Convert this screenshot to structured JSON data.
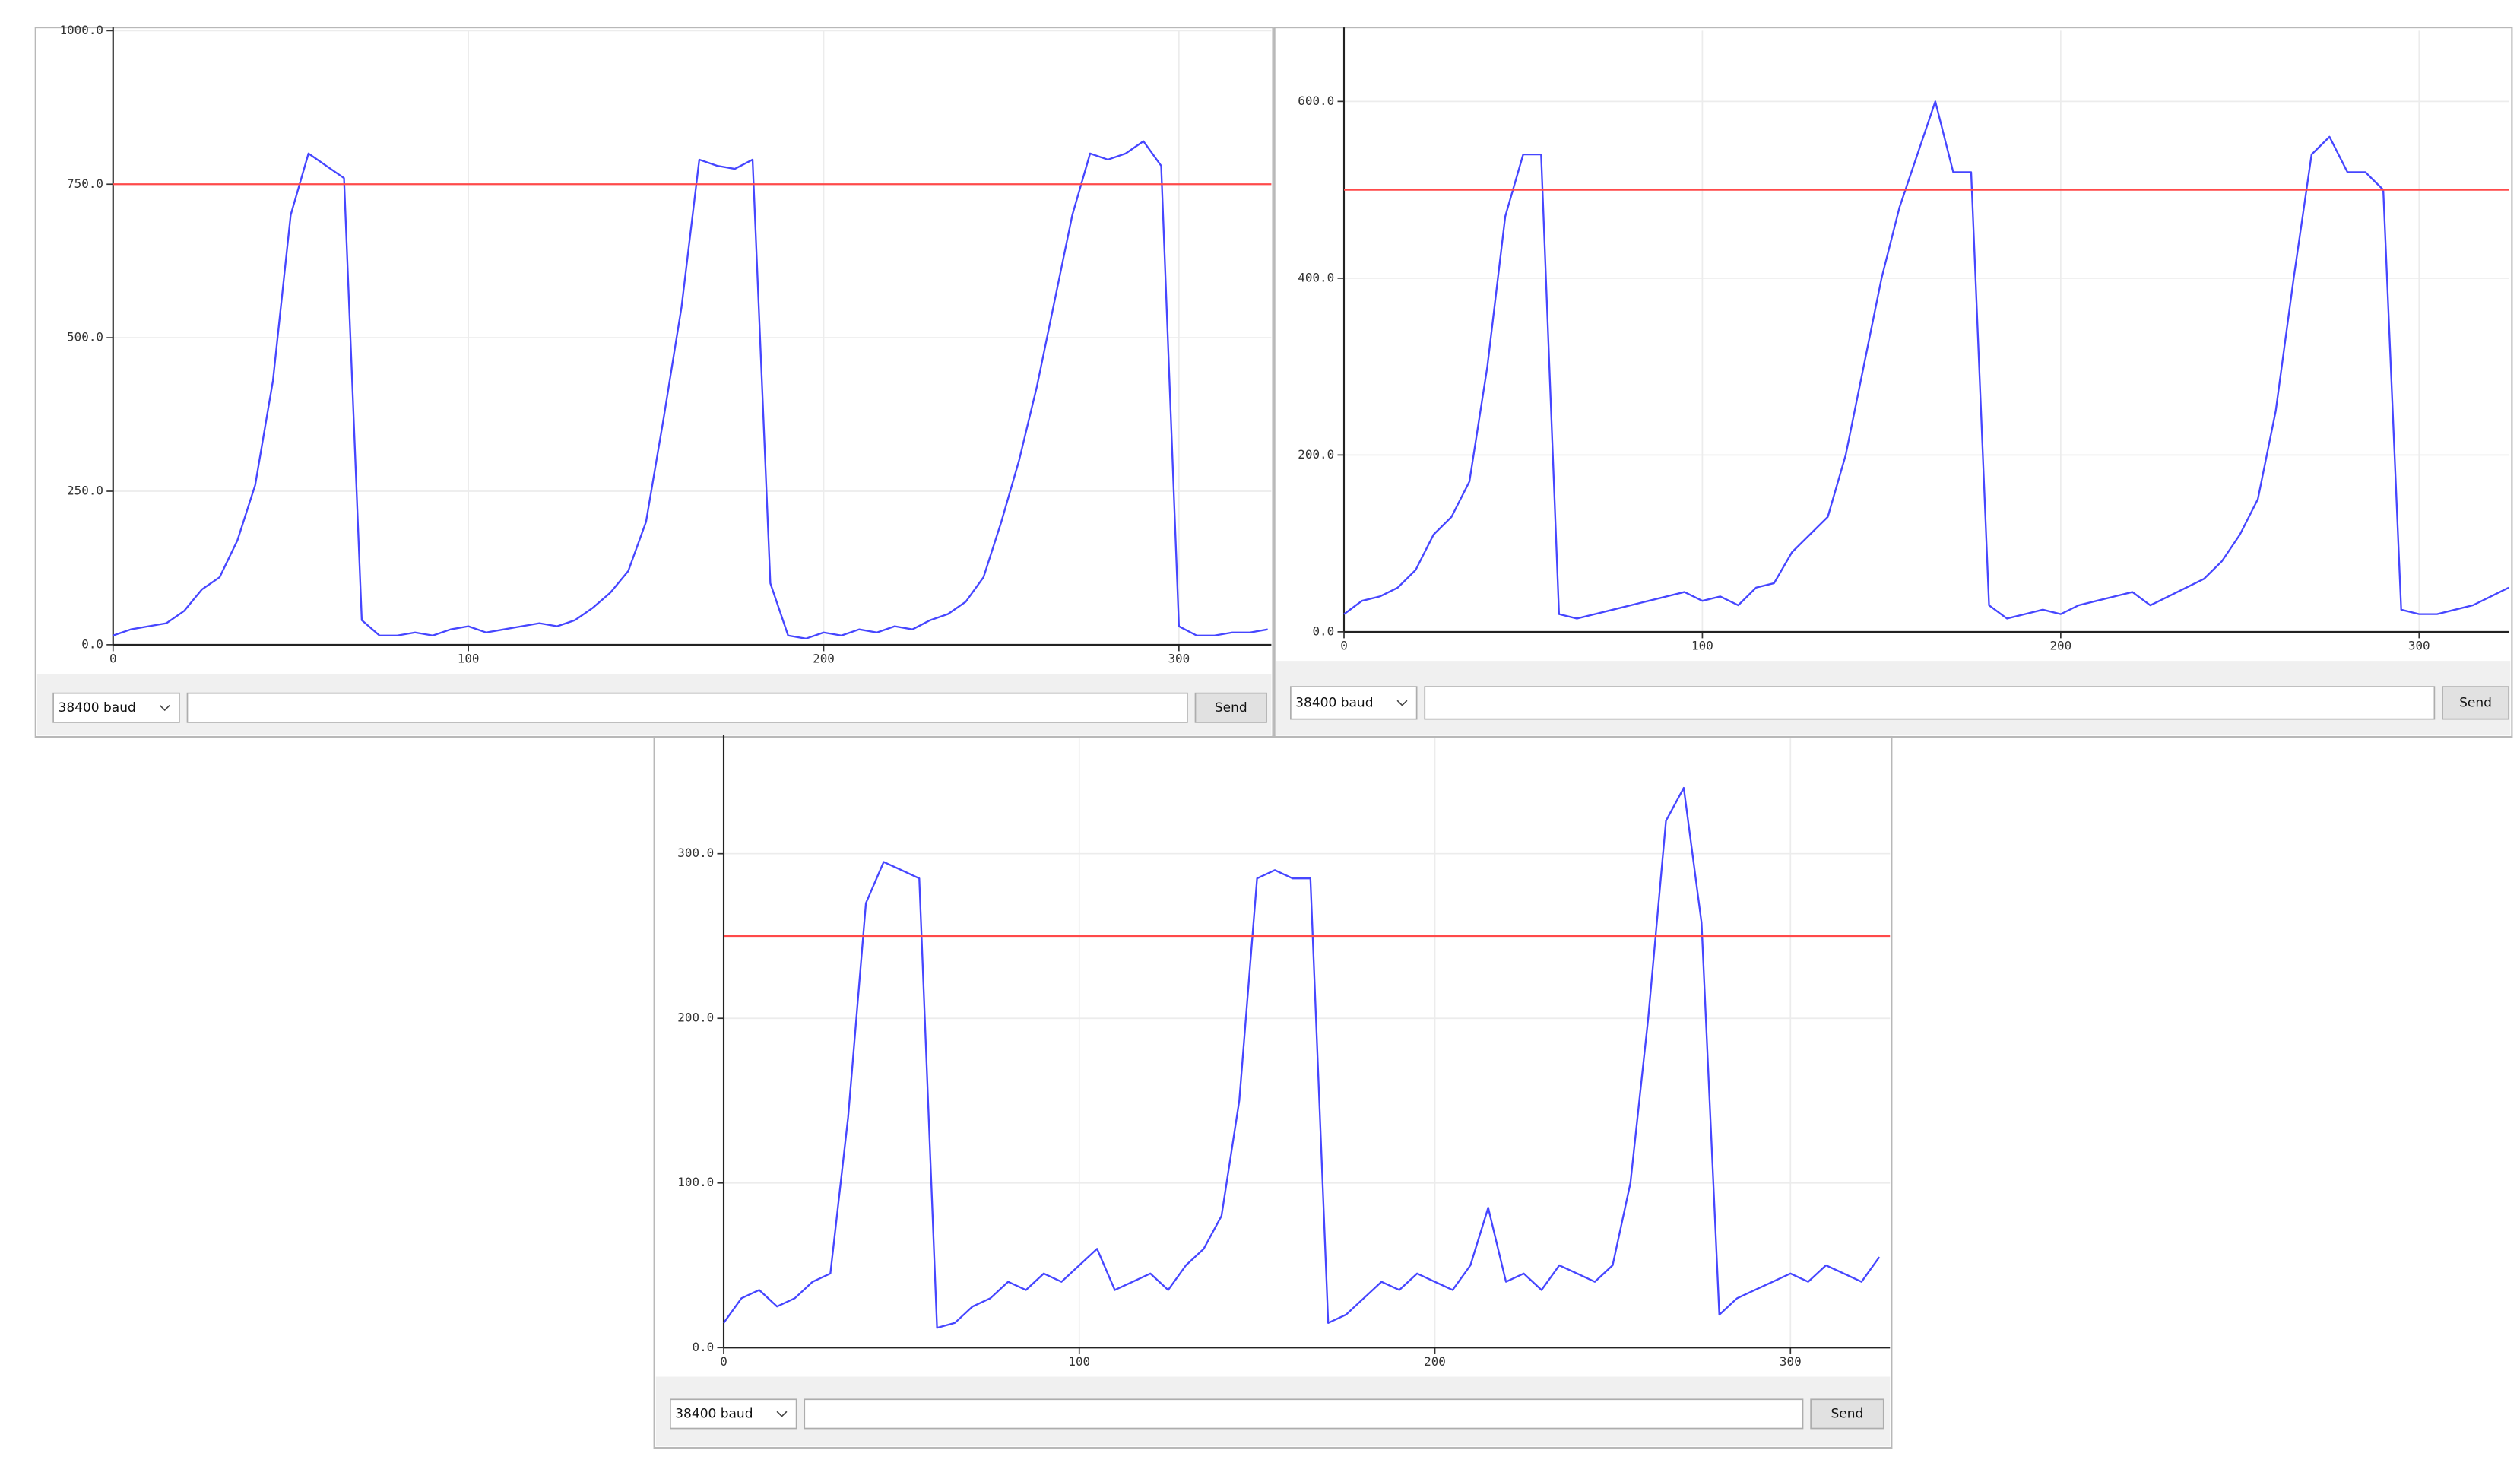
{
  "chart_data": [
    {
      "type": "line",
      "x": [
        0,
        5,
        10,
        15,
        20,
        25,
        30,
        35,
        40,
        45,
        50,
        55,
        60,
        65,
        70,
        75,
        80,
        85,
        90,
        95,
        100,
        105,
        110,
        115,
        120,
        125,
        130,
        135,
        140,
        145,
        150,
        155,
        160,
        165,
        170,
        175,
        180,
        185,
        190,
        195,
        200,
        205,
        210,
        215,
        220,
        225,
        230,
        235,
        240,
        245,
        250,
        255,
        260,
        265,
        270,
        275,
        280,
        285,
        290,
        295,
        300,
        305,
        310,
        315,
        320,
        325
      ],
      "series": [
        {
          "color": "#4646ff",
          "values": [
            15,
            25,
            30,
            35,
            55,
            90,
            110,
            170,
            260,
            430,
            700,
            800,
            780,
            760,
            40,
            15,
            15,
            20,
            15,
            25,
            30,
            20,
            25,
            30,
            35,
            30,
            40,
            60,
            85,
            120,
            200,
            370,
            550,
            790,
            780,
            775,
            790,
            100,
            15,
            10,
            20,
            15,
            25,
            20,
            30,
            25,
            40,
            50,
            70,
            110,
            200,
            300,
            420,
            560,
            700,
            800,
            790,
            800,
            820,
            780,
            30,
            15,
            15,
            20,
            20,
            25
          ]
        },
        {
          "color": "#ff4a4a",
          "x": [
            0,
            326
          ],
          "values": [
            750,
            750
          ]
        }
      ],
      "xlim": [
        0,
        326
      ],
      "xticks": [
        0,
        100,
        200,
        300
      ],
      "ylim": [
        0,
        1000
      ],
      "yticks": [
        {
          "value": 0,
          "label": "0.0"
        },
        {
          "value": 250,
          "label": "250.0"
        },
        {
          "value": 500,
          "label": "500.0"
        },
        {
          "value": 750,
          "label": "750.0"
        },
        {
          "value": 1000,
          "label": "1000.0"
        }
      ],
      "grid": true
    },
    {
      "type": "line",
      "x": [
        0,
        5,
        10,
        15,
        20,
        25,
        30,
        35,
        40,
        45,
        50,
        55,
        60,
        65,
        70,
        75,
        80,
        85,
        90,
        95,
        100,
        105,
        110,
        115,
        120,
        125,
        130,
        135,
        140,
        145,
        150,
        155,
        160,
        165,
        170,
        175,
        180,
        185,
        190,
        195,
        200,
        205,
        210,
        215,
        220,
        225,
        230,
        235,
        240,
        245,
        250,
        255,
        260,
        265,
        270,
        275,
        280,
        285,
        290,
        295,
        300,
        305,
        310,
        315,
        320,
        325
      ],
      "series": [
        {
          "color": "#4646ff",
          "values": [
            20,
            35,
            40,
            50,
            70,
            110,
            130,
            170,
            300,
            470,
            540,
            540,
            20,
            15,
            20,
            25,
            30,
            35,
            40,
            45,
            35,
            40,
            30,
            50,
            55,
            90,
            110,
            130,
            200,
            300,
            400,
            480,
            540,
            600,
            520,
            520,
            30,
            15,
            20,
            25,
            20,
            30,
            35,
            40,
            45,
            30,
            40,
            50,
            60,
            80,
            110,
            150,
            250,
            400,
            540,
            560,
            520,
            520,
            500,
            25,
            20,
            20,
            25,
            30,
            40,
            50
          ]
        },
        {
          "color": "#ff4a4a",
          "x": [
            0,
            325
          ],
          "values": [
            500,
            500
          ]
        }
      ],
      "xlim": [
        0,
        325
      ],
      "xticks": [
        0,
        100,
        200,
        300
      ],
      "ylim": [
        0,
        680
      ],
      "yticks": [
        {
          "value": 0,
          "label": "0.0"
        },
        {
          "value": 200,
          "label": "200.0"
        },
        {
          "value": 400,
          "label": "400.0"
        },
        {
          "value": 600,
          "label": "600.0"
        }
      ],
      "grid": true
    },
    {
      "type": "line",
      "x": [
        0,
        5,
        10,
        15,
        20,
        25,
        30,
        35,
        40,
        45,
        50,
        55,
        60,
        65,
        70,
        75,
        80,
        85,
        90,
        95,
        100,
        105,
        110,
        115,
        120,
        125,
        130,
        135,
        140,
        145,
        150,
        155,
        160,
        165,
        170,
        175,
        180,
        185,
        190,
        195,
        200,
        205,
        210,
        215,
        220,
        225,
        230,
        235,
        240,
        245,
        250,
        255,
        260,
        265,
        270,
        275,
        280,
        285,
        290,
        295,
        300,
        305,
        310,
        315,
        320,
        325
      ],
      "series": [
        {
          "color": "#4646ff",
          "values": [
            15,
            30,
            35,
            25,
            30,
            40,
            45,
            140,
            270,
            295,
            290,
            285,
            12,
            15,
            25,
            30,
            40,
            35,
            45,
            40,
            50,
            60,
            35,
            40,
            45,
            35,
            50,
            60,
            80,
            150,
            285,
            290,
            285,
            285,
            15,
            20,
            30,
            40,
            35,
            45,
            40,
            35,
            50,
            85,
            40,
            45,
            35,
            50,
            45,
            40,
            50,
            100,
            200,
            320,
            340,
            258,
            20,
            30,
            35,
            40,
            45,
            40,
            50,
            45,
            40,
            55
          ]
        },
        {
          "color": "#ff4a4a",
          "x": [
            0,
            328
          ],
          "values": [
            250,
            250
          ]
        }
      ],
      "xlim": [
        0,
        328
      ],
      "xticks": [
        0,
        100,
        200,
        300
      ],
      "ylim": [
        0,
        370
      ],
      "yticks": [
        {
          "value": 0,
          "label": "0.0"
        },
        {
          "value": 100,
          "label": "100.0"
        },
        {
          "value": 200,
          "label": "200.0"
        },
        {
          "value": 300,
          "label": "300.0"
        }
      ],
      "grid": true
    }
  ],
  "panels": [
    {
      "baud": "38400 baud",
      "button": "Send"
    },
    {
      "baud": "38400 baud",
      "button": "Send"
    },
    {
      "baud": "38400 baud",
      "button": "Send"
    }
  ]
}
